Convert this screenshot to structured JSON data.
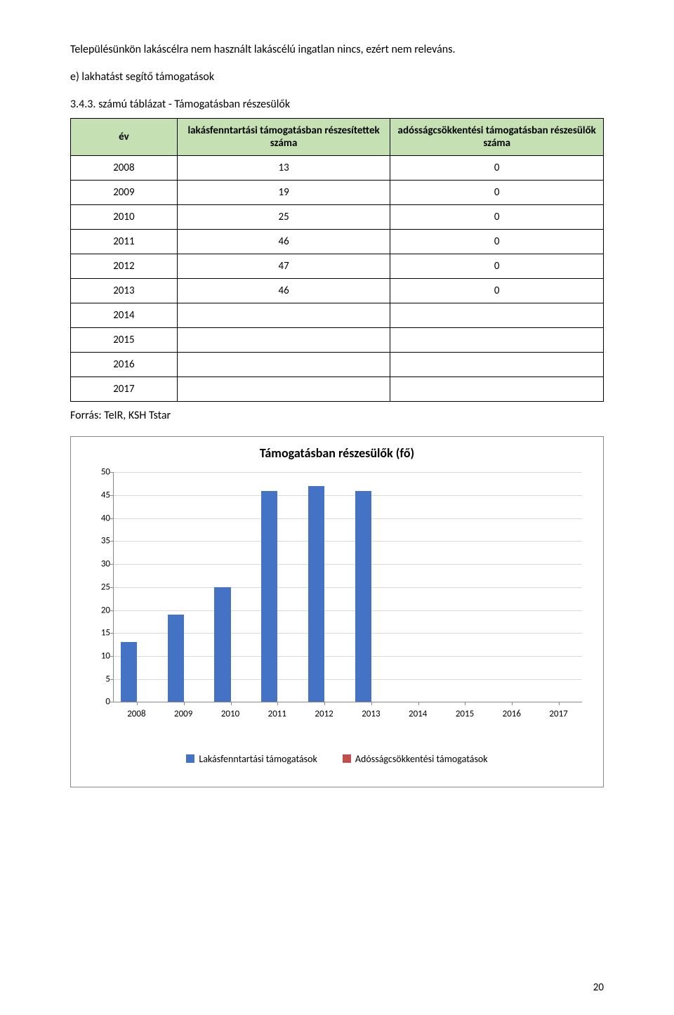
{
  "intro": "Településünkön lakáscélra nem használt lakáscélú ingatlan nincs, ezért nem releváns.",
  "subtitle": "e) lakhatást segítő támogatások",
  "table": {
    "title": "3.4.3. számú táblázat - Támogatásban részesülők",
    "header_bg": "#c5e0b3",
    "columns": {
      "year": "év",
      "col2": "lakásfenntartási támogatásban részesítettek száma",
      "col3": "adósságcsökkentési támogatásban részesülők száma"
    },
    "rows": [
      {
        "year": "2008",
        "v1": "13",
        "v2": "0"
      },
      {
        "year": "2009",
        "v1": "19",
        "v2": "0"
      },
      {
        "year": "2010",
        "v1": "25",
        "v2": "0"
      },
      {
        "year": "2011",
        "v1": "46",
        "v2": "0"
      },
      {
        "year": "2012",
        "v1": "47",
        "v2": "0"
      },
      {
        "year": "2013",
        "v1": "46",
        "v2": "0"
      },
      {
        "year": "2014",
        "v1": "",
        "v2": ""
      },
      {
        "year": "2015",
        "v1": "",
        "v2": ""
      },
      {
        "year": "2016",
        "v1": "",
        "v2": ""
      },
      {
        "year": "2017",
        "v1": "",
        "v2": ""
      }
    ]
  },
  "source": "Forrás: TeIR, KSH Tstar",
  "chart": {
    "type": "bar",
    "title": "Támogatásban részesülők (fő)",
    "categories": [
      "2008",
      "2009",
      "2010",
      "2011",
      "2012",
      "2013",
      "2014",
      "2015",
      "2016",
      "2017"
    ],
    "series": [
      {
        "name": "Lakásfenntartási támogatások",
        "color": "#4472c4",
        "values": [
          13,
          19,
          25,
          46,
          47,
          46,
          0,
          0,
          0,
          0
        ]
      },
      {
        "name": "Adósságcsökkentési támogatások",
        "color": "#c0504d",
        "values": [
          0,
          0,
          0,
          0,
          0,
          0,
          0,
          0,
          0,
          0
        ]
      }
    ],
    "ylim": [
      0,
      50
    ],
    "ytick_step": 5,
    "grid_color": "#d9d9d9",
    "background_color": "#ffffff",
    "border_color": "#888888",
    "title_fontsize": 18,
    "label_fontsize": 13,
    "bar_group_width_pct": 7
  },
  "page_number": "20"
}
